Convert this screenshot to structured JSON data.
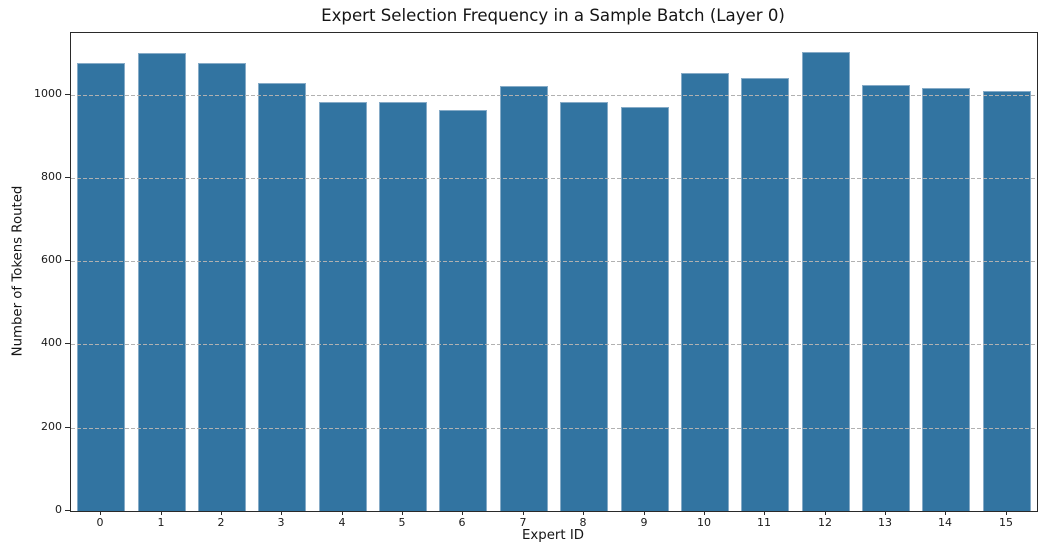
{
  "chart_data": {
    "type": "bar",
    "title": "Expert Selection Frequency in a Sample Batch (Layer 0)",
    "xlabel": "Expert ID",
    "ylabel": "Number of Tokens Routed",
    "categories": [
      "0",
      "1",
      "2",
      "3",
      "4",
      "5",
      "6",
      "7",
      "8",
      "9",
      "10",
      "11",
      "12",
      "13",
      "14",
      "15"
    ],
    "values": [
      1075,
      1100,
      1077,
      1027,
      982,
      982,
      964,
      1021,
      982,
      971,
      1051,
      1041,
      1102,
      1024,
      1015,
      1009
    ],
    "yticks": [
      0,
      200,
      400,
      600,
      800,
      1000
    ],
    "ylim": [
      0,
      1148
    ],
    "xlim": [
      -0.5,
      15.5
    ],
    "bar_width_fraction": 0.8,
    "grid": {
      "axis": "y",
      "linestyle": "dashed",
      "drawn_above_bars": true
    },
    "legend": null,
    "colors": {
      "bar_fill": "#3274a1",
      "bar_edge": "#86abc7",
      "gridline": "#b1b1b1",
      "spine": "#2a2a2a",
      "text": "#1a1a1a",
      "background": "#ffffff"
    }
  }
}
